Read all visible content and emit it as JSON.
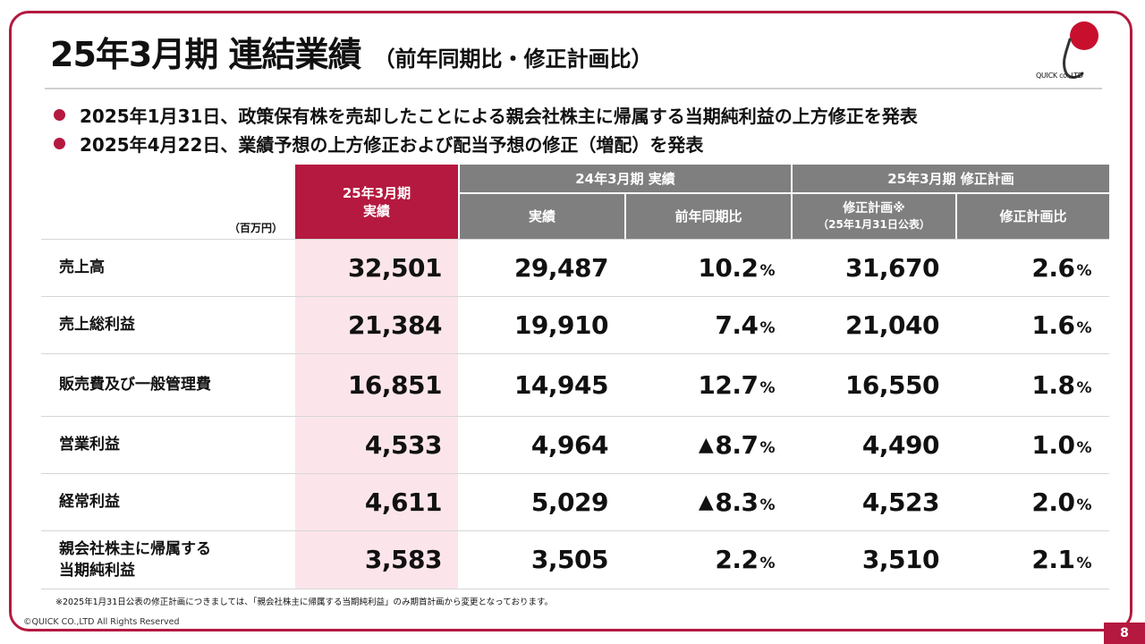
{
  "title": {
    "main": "25年3月期 連結業績",
    "sub": "（前年同期比・修正計画比）"
  },
  "logo_text": "QUICK co.,LTD",
  "bullets": [
    "2025年1月31日、政策保有株を売却したことによる親会社株主に帰属する当期純利益の上方修正を発表",
    "2025年4月22日、業績予想の上方修正および配当予想の修正（増配）を発表"
  ],
  "table": {
    "unit": "（百万円）",
    "col_actual": {
      "line1": "25年3月期",
      "line2": "実績"
    },
    "group_prev": "24年3月期 実績",
    "group_plan": "25年3月期 修正計画",
    "sub_prev_actual": "実績",
    "sub_prev_yoy": "前年同期比",
    "sub_plan": {
      "line1": "修正計画※",
      "line2": "（25年1月31日公表）"
    },
    "sub_plan_ratio": "修正計画比",
    "rows": [
      {
        "label1": "売上高",
        "label2": "",
        "actual": "32,501",
        "prev": "29,487",
        "yoy_tri": "",
        "yoy": "10.2",
        "yoy_unit": "%",
        "plan": "31,670",
        "ratio": "2.6",
        "ratio_unit": "%"
      },
      {
        "label1": "売上総利益",
        "label2": "",
        "actual": "21,384",
        "prev": "19,910",
        "yoy_tri": "",
        "yoy": "7.4",
        "yoy_unit": "%",
        "plan": "21,040",
        "ratio": "1.6",
        "ratio_unit": "%"
      },
      {
        "label1": "販売費及び一般管理費",
        "label2": "",
        "actual": "16,851",
        "prev": "14,945",
        "yoy_tri": "",
        "yoy": "12.7",
        "yoy_unit": "%",
        "plan": "16,550",
        "ratio": "1.8",
        "ratio_unit": "%"
      },
      {
        "label1": "営業利益",
        "label2": "",
        "actual": "4,533",
        "prev": "4,964",
        "yoy_tri": "▲",
        "yoy": "8.7",
        "yoy_unit": "%",
        "plan": "4,490",
        "ratio": "1.0",
        "ratio_unit": "%"
      },
      {
        "label1": "経常利益",
        "label2": "",
        "actual": "4,611",
        "prev": "5,029",
        "yoy_tri": "▲",
        "yoy": "8.3",
        "yoy_unit": "%",
        "plan": "4,523",
        "ratio": "2.0",
        "ratio_unit": "%"
      },
      {
        "label1": "親会社株主に帰属する",
        "label2": "当期純利益",
        "actual": "3,583",
        "prev": "3,505",
        "yoy_tri": "",
        "yoy": "2.2",
        "yoy_unit": "%",
        "plan": "3,510",
        "ratio": "2.1",
        "ratio_unit": "%"
      }
    ]
  },
  "footnote": "※2025年1月31日公表の修正計画につきましては、「親会社株主に帰属する当期純利益」のみ期首計画から変更となっております。",
  "copyright": "©QUICK CO.,LTD All Rights Reserved",
  "page_number": "8",
  "colors": {
    "accent": "#b5193f",
    "header_grey": "#7f7f7f",
    "highlight_col": "#fbe5ea"
  }
}
